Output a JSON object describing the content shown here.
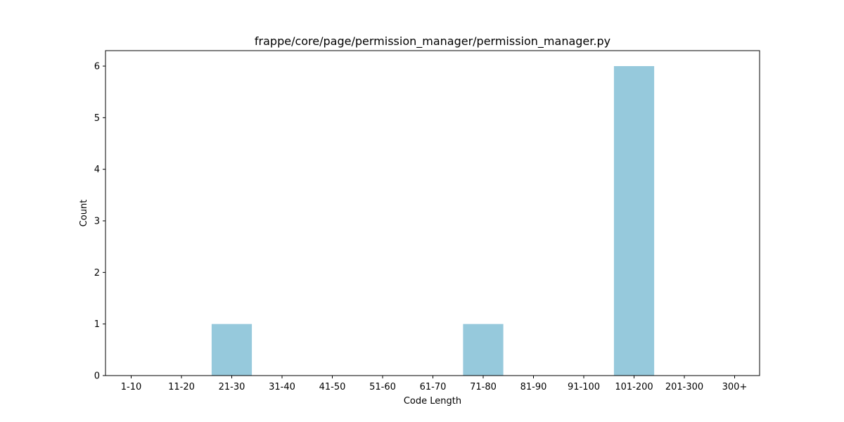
{
  "chart_data": {
    "type": "bar",
    "title": "frappe/core/page/permission_manager/permission_manager.py",
    "xlabel": "Code Length",
    "ylabel": "Count",
    "categories": [
      "1-10",
      "11-20",
      "21-30",
      "31-40",
      "41-50",
      "51-60",
      "61-70",
      "71-80",
      "81-90",
      "91-100",
      "101-200",
      "201-300",
      "300+"
    ],
    "values": [
      0,
      0,
      1,
      0,
      0,
      0,
      0,
      1,
      0,
      0,
      6,
      0,
      0
    ],
    "ylim": [
      0,
      6.3
    ],
    "yticks": [
      0,
      1,
      2,
      3,
      4,
      5,
      6
    ],
    "bar_color": "#96c9dc",
    "grid": false,
    "legend": "none"
  }
}
